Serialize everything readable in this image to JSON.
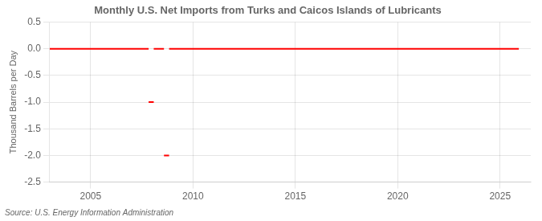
{
  "chart_data": {
    "type": "line",
    "title": "Monthly U.S. Net Imports from Turks and Caicos Islands of Lubricants",
    "ylabel": "Thousand Barrels per Day",
    "annotations": [
      "Source: U.S. Energy Information Administration"
    ],
    "x": [
      2003.0,
      2007.833,
      2007.833,
      2007.833,
      2008.083,
      2008.083,
      2008.083,
      2008.583,
      2008.583,
      2008.583,
      2008.833,
      2008.833,
      2008.833,
      2025.917
    ],
    "series": [
      {
        "color": "#FF0000",
        "values": [
          0.0,
          0.0,
          null,
          -1.0,
          -1.0,
          null,
          0.0,
          0.0,
          null,
          -2.0,
          -2.0,
          null,
          0.0,
          0.0
        ]
      }
    ],
    "xlim": [
      2003.0,
      2026.5
    ],
    "xticks": [
      2005,
      2010,
      2015,
      2020,
      2025
    ],
    "ylim": [
      -2.5,
      0.5
    ],
    "yticks": [
      0.5,
      {
        "value": 0.0,
        "label": "0.0"
      },
      -0.5,
      {
        "value": -1.0,
        "label": "-1.0"
      },
      -1.5,
      {
        "value": -2.0,
        "label": "-2.0"
      },
      -2.5
    ],
    "grid": true
  }
}
